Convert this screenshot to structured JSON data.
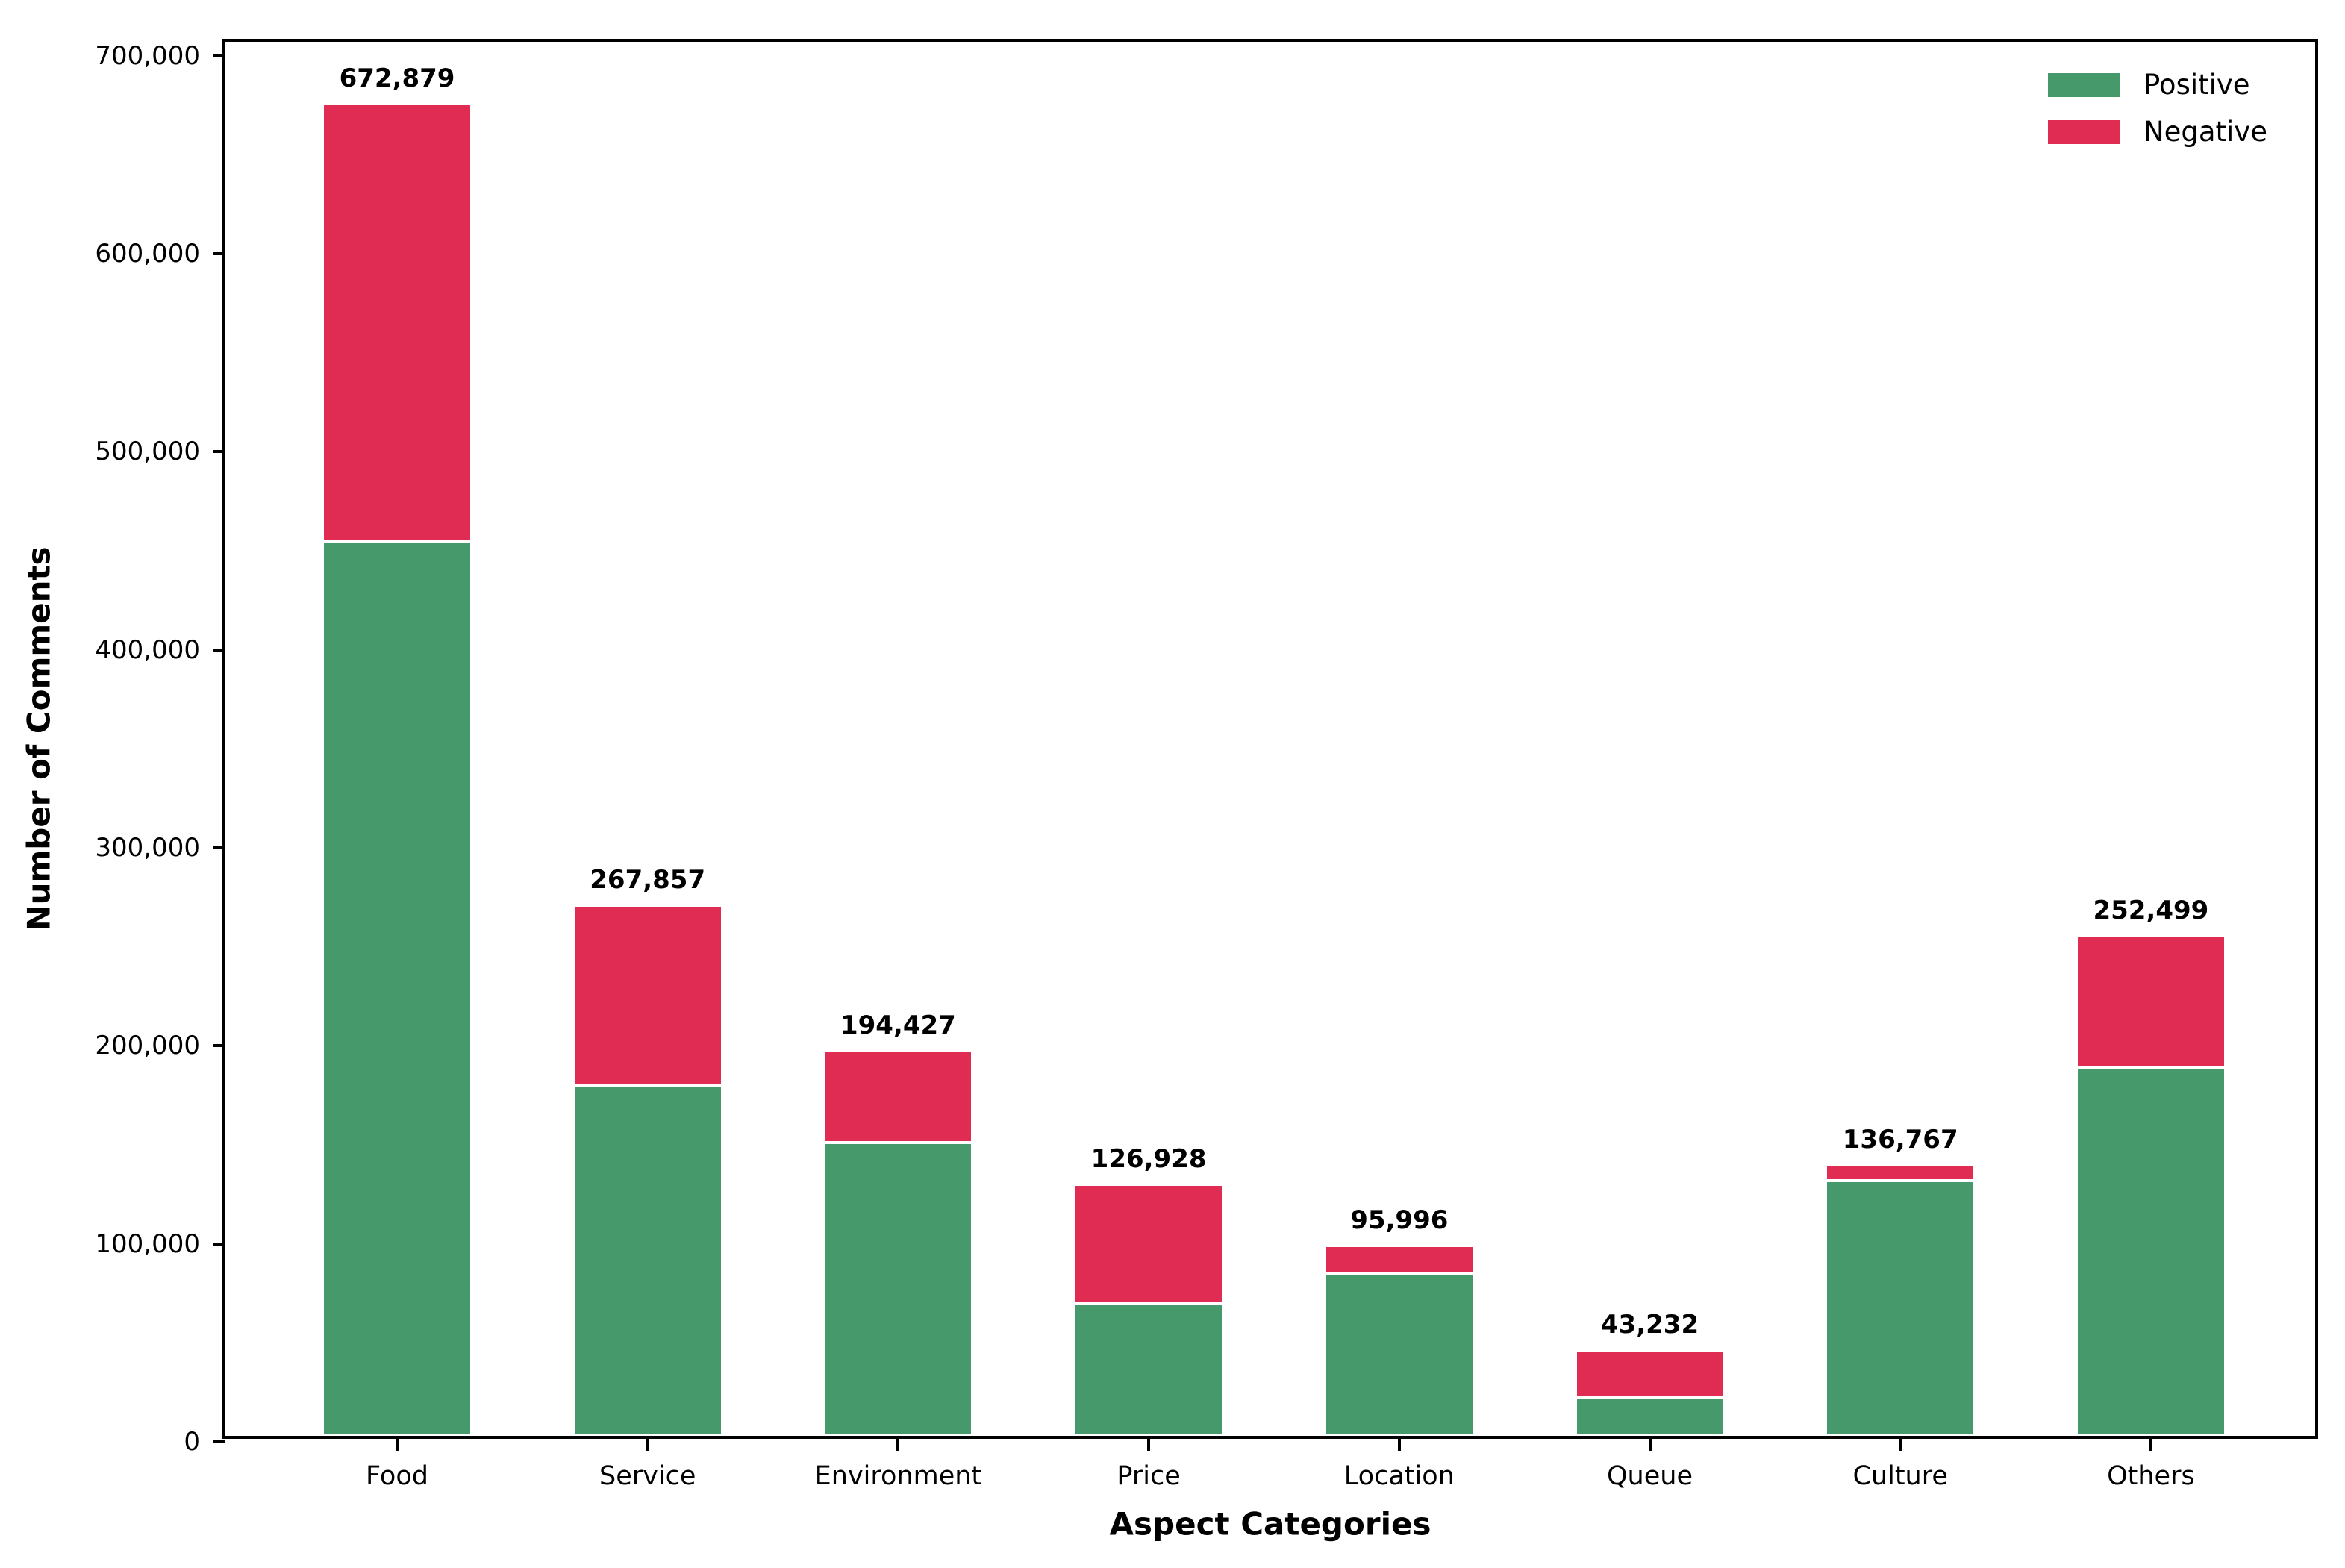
{
  "chart_data": {
    "type": "bar",
    "stacked": true,
    "title": "",
    "xlabel": "Aspect Categories",
    "ylabel": "Number of Comments",
    "categories": [
      "Food",
      "Service",
      "Environment",
      "Price",
      "Location",
      "Queue",
      "Culture",
      "Others"
    ],
    "series": [
      {
        "name": "Positive",
        "color": "#45996b",
        "values": [
          452000,
          177000,
          148000,
          67000,
          82000,
          19500,
          129000,
          186000
        ]
      },
      {
        "name": "Negative",
        "color": "#e02c52",
        "values": [
          220879,
          90857,
          46427,
          59928,
          13996,
          23732,
          7767,
          66499
        ]
      }
    ],
    "totals": [
      672879,
      267857,
      194427,
      126928,
      95996,
      43232,
      136767,
      252499
    ],
    "total_labels": [
      "672,879",
      "267,857",
      "194,427",
      "126,928",
      "95,996",
      "43,232",
      "136,767",
      "252,499"
    ],
    "y_ticks": [
      {
        "value": 0,
        "label": "0"
      },
      {
        "value": 100000,
        "label": "100,000"
      },
      {
        "value": 200000,
        "label": "200,000"
      },
      {
        "value": 300000,
        "label": "300,000"
      },
      {
        "value": 400000,
        "label": "400,000"
      },
      {
        "value": 500000,
        "label": "500,000"
      },
      {
        "value": 600000,
        "label": "600,000"
      },
      {
        "value": 700000,
        "label": "700,000"
      }
    ],
    "ylim": [
      0,
      707000
    ],
    "grid": false,
    "legend": {
      "position": "upper right",
      "entries": [
        {
          "label": "Positive",
          "color": "#45996b"
        },
        {
          "label": "Negative",
          "color": "#e02c52"
        }
      ]
    }
  }
}
